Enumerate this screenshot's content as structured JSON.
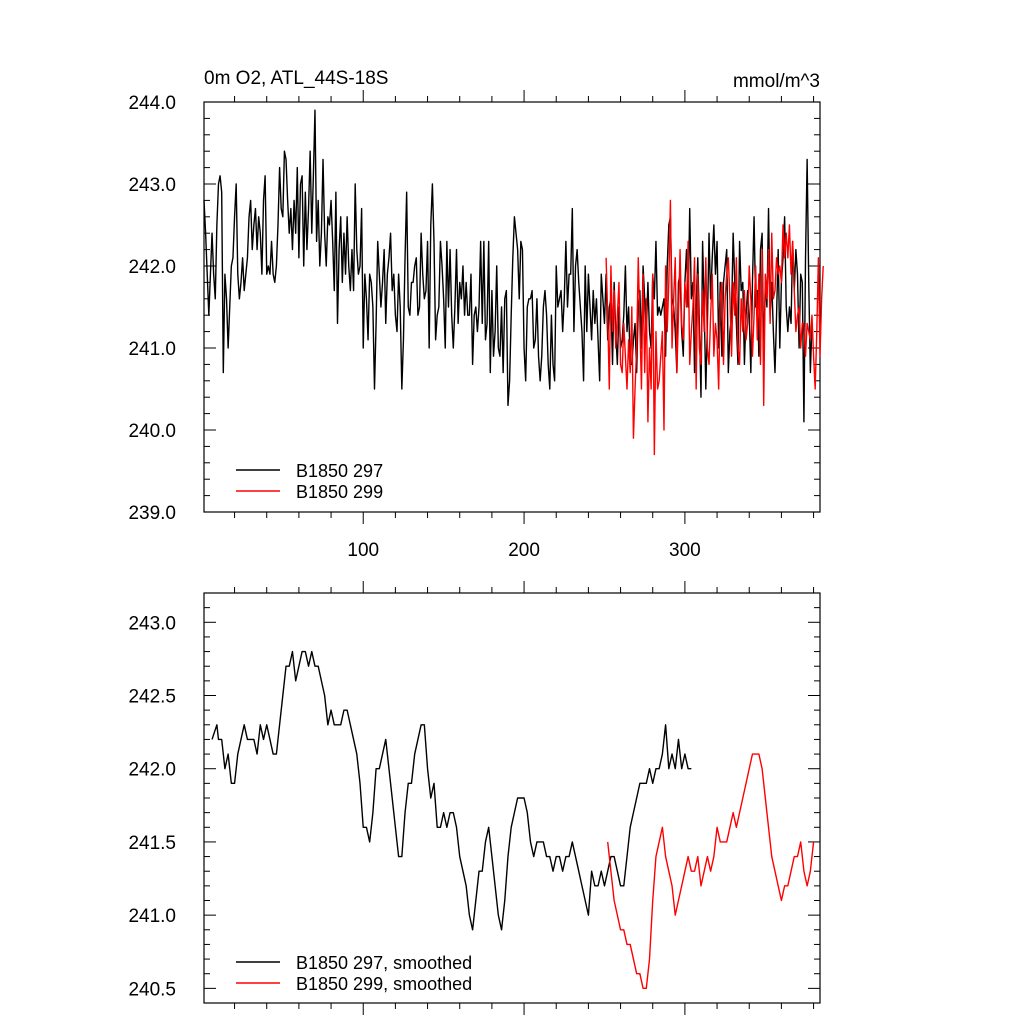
{
  "chart_data": [
    {
      "type": "line",
      "title": "0m O2, ATL_44S-18S",
      "units": "mmol/m^3",
      "xlim": [
        1,
        384
      ],
      "ylim": [
        239.0,
        244.0
      ],
      "x_ticks": [
        100,
        200,
        300
      ],
      "x_tick_labels": [
        "100",
        "200",
        "300"
      ],
      "y_ticks": [
        239.0,
        240.0,
        241.0,
        242.0,
        243.0,
        244.0
      ],
      "y_tick_labels": [
        "239.0",
        "240.0",
        "241.0",
        "242.0",
        "243.0",
        "244.0"
      ],
      "legend_placement": "bottom-left",
      "series": [
        {
          "name": "B1850 297",
          "color": "#000000",
          "x_start": 1,
          "values": [
            242.8,
            242.4,
            241.9,
            241.4,
            241.9,
            242.4,
            241.9,
            241.6,
            242.5,
            243.0,
            243.1,
            242.9,
            240.7,
            241.9,
            241.6,
            241.0,
            241.5,
            242.0,
            242.1,
            242.6,
            243.0,
            241.9,
            241.6,
            241.8,
            242.1,
            241.7,
            241.9,
            242.1,
            242.6,
            242.8,
            242.2,
            242.5,
            242.7,
            242.2,
            242.6,
            242.4,
            241.9,
            242.8,
            243.1,
            241.9,
            242.0,
            241.9,
            242.3,
            241.9,
            241.8,
            242.0,
            242.5,
            243.2,
            242.7,
            242.6,
            243.4,
            243.3,
            242.8,
            242.4,
            242.7,
            242.2,
            242.8,
            242.4,
            243.2,
            242.1,
            243.0,
            243.1,
            242.0,
            242.9,
            242.2,
            242.7,
            243.4,
            242.4,
            243.1,
            243.9,
            242.3,
            242.8,
            242.0,
            242.4,
            243.3,
            242.4,
            242.0,
            242.6,
            242.5,
            242.8,
            242.3,
            241.7,
            242.9,
            241.3,
            242.2,
            242.6,
            241.8,
            242.4,
            241.9,
            242.6,
            242.0,
            241.7,
            242.2,
            241.7,
            243.0,
            242.2,
            241.9,
            242.0,
            242.7,
            241.0,
            241.9,
            241.6,
            241.1,
            241.9,
            241.8,
            241.5,
            240.5,
            241.3,
            242.3,
            241.9,
            241.5,
            241.8,
            242.2,
            241.3,
            241.9,
            242.1,
            242.4,
            241.7,
            241.9,
            241.4,
            241.2,
            241.9,
            241.5,
            240.5,
            241.1,
            242.1,
            242.9,
            241.5,
            241.4,
            241.8,
            241.8,
            242.0,
            242.1,
            241.4,
            241.5,
            242.4,
            241.9,
            241.6,
            241.7,
            242.3,
            241.0,
            242.5,
            243.0,
            242.3,
            241.1,
            241.4,
            241.5,
            242.3,
            242.0,
            241.6,
            241.0,
            242.3,
            241.5,
            242.2,
            241.4,
            241.0,
            241.5,
            242.2,
            241.3,
            241.8,
            241.6,
            242.0,
            241.4,
            241.8,
            241.4,
            241.4,
            241.9,
            240.8,
            241.4,
            241.5,
            241.2,
            241.5,
            242.3,
            241.3,
            242.3,
            241.1,
            241.3,
            242.3,
            240.7,
            241.7,
            240.9,
            241.2,
            242.0,
            241.0,
            240.9,
            241.5,
            240.7,
            241.6,
            241.7,
            240.3,
            240.6,
            241.4,
            242.1,
            242.6,
            242.4,
            242.2,
            241.6,
            242.3,
            242.2,
            241.0,
            240.6,
            241.5,
            241.6,
            241.6,
            241.7,
            241.0,
            241.1,
            241.6,
            240.9,
            240.6,
            240.9,
            241.5,
            241.7,
            241.4,
            240.8,
            240.5,
            241.4,
            240.8,
            240.6,
            242.0,
            241.5,
            241.6,
            241.7,
            241.2,
            241.6,
            242.3,
            241.5,
            241.9,
            241.9,
            242.7,
            241.2,
            242.0,
            242.2,
            241.8,
            241.5,
            241.2,
            240.6,
            242.0,
            241.2,
            241.9,
            241.5,
            241.1,
            241.7,
            241.3,
            241.6,
            241.1,
            240.6,
            241.9,
            241.6,
            241.3,
            241.9,
            241.1,
            241.5,
            241.6,
            240.8,
            241.8,
            241.2,
            240.8,
            241.5,
            241.0,
            241.1,
            241.4,
            242.0,
            241.2,
            241.5,
            240.8,
            240.8,
            241.1,
            241.3,
            240.7,
            241.5,
            241.7,
            241.0,
            242.0,
            241.6,
            241.2,
            241.8,
            241.2,
            241.0,
            241.9,
            241.6,
            242.3,
            241.4,
            241.5,
            241.4,
            241.5,
            241.6,
            240.9,
            242.0,
            242.5,
            242.6,
            241.6,
            241.5,
            241.2,
            240.7,
            241.8,
            241.9,
            241.2,
            240.9,
            241.8,
            242.2,
            241.5,
            242.7,
            241.6,
            241.8,
            240.7,
            241.5,
            242.1,
            241.3,
            240.4,
            242.3,
            241.5,
            240.5,
            241.3,
            242.4,
            241.6,
            242.1,
            242.5,
            241.9,
            242.3,
            241.0,
            241.8,
            240.9,
            241.8,
            242.0,
            242.2,
            240.7,
            241.2,
            241.4,
            242.4,
            241.8,
            241.3,
            240.8,
            242.3,
            241.7,
            241.8,
            240.8,
            241.4,
            241.7,
            241.4,
            240.7,
            241.8,
            242.6,
            241.5,
            241.7,
            240.9,
            242.2,
            242.4,
            240.9,
            241.8,
            241.5,
            242.7,
            241.4,
            241.8,
            241.2,
            240.7,
            241.4,
            242.2,
            241.0,
            241.8,
            242.1,
            242.6,
            241.5,
            241.2,
            241.5,
            241.3,
            242.3,
            241.7,
            242.2,
            241.9,
            241.0,
            241.9,
            241.8,
            240.1,
            242.1,
            243.3,
            241.8,
            240.7,
            241.3
          ]
        },
        {
          "name": "B1850 299",
          "color": "#ff0000",
          "x_start": 251,
          "values": [
            242.1,
            241.4,
            240.5,
            242.0,
            241.2,
            241.7,
            241.0,
            241.4,
            241.8,
            240.8,
            240.7,
            241.3,
            240.9,
            240.5,
            241.1,
            240.7,
            241.5,
            239.9,
            240.5,
            241.0,
            242.1,
            241.3,
            240.5,
            241.9,
            240.7,
            241.6,
            240.1,
            241.0,
            240.5,
            241.9,
            239.7,
            241.2,
            240.5,
            240.6,
            240.9,
            241.2,
            240.0,
            242.0,
            241.2,
            241.8,
            242.8,
            241.0,
            241.6,
            242.1,
            240.7,
            241.4,
            242.2,
            241.3,
            241.1,
            241.8,
            241.5,
            242.3,
            240.8,
            241.2,
            241.5,
            242.1,
            240.5,
            241.9,
            241.0,
            240.8,
            241.7,
            241.2,
            242.1,
            241.0,
            240.8,
            241.4,
            241.9,
            240.9,
            241.3,
            241.1,
            240.5,
            241.6,
            241.8,
            240.8,
            241.6,
            241.9,
            242.1,
            241.6,
            240.9,
            241.8,
            241.4,
            242.1,
            241.0,
            240.8,
            241.6,
            241.2,
            241.7,
            241.1,
            241.3,
            242.0,
            241.6,
            240.9,
            241.4,
            242.0,
            241.1,
            241.9,
            240.8,
            242.2,
            240.3,
            241.9,
            241.6,
            242.2,
            241.3,
            242.4,
            241.6,
            241.7,
            242.1,
            241.9,
            242.0,
            241.8,
            242.5,
            242.1,
            242.4,
            242.1,
            242.5,
            241.9,
            242.3,
            241.7,
            241.2,
            241.4,
            241.5,
            241.0,
            241.3,
            241.3,
            240.9,
            241.3,
            241.2,
            241.1,
            241.4,
            240.9,
            240.5,
            241.2,
            242.1,
            240.9,
            241.6,
            242.0
          ]
        }
      ]
    },
    {
      "type": "line",
      "xlim": [
        1,
        384
      ],
      "ylim": [
        240.4,
        243.2
      ],
      "x_ticks": [
        100,
        200,
        300
      ],
      "y_ticks": [
        240.5,
        241.0,
        241.5,
        242.0,
        242.5,
        243.0
      ],
      "y_tick_labels": [
        "240.5",
        "241.0",
        "241.5",
        "242.0",
        "242.5",
        "243.0"
      ],
      "legend_placement": "bottom-left",
      "series": [
        {
          "name": "B1850 297, smoothed",
          "color": "#000000",
          "x": [
            6,
            9,
            10,
            12,
            14,
            16,
            18,
            20,
            22,
            24,
            26,
            28,
            30,
            32,
            34,
            36,
            38,
            40,
            42,
            44,
            46,
            48,
            50,
            52,
            54,
            56,
            58,
            60,
            62,
            64,
            66,
            68,
            70,
            72,
            74,
            76,
            78,
            80,
            82,
            84,
            86,
            88,
            90,
            92,
            94,
            96,
            98,
            100,
            102,
            104,
            106,
            108,
            110,
            112,
            114,
            116,
            118,
            120,
            122,
            124,
            126,
            128,
            130,
            132,
            134,
            136,
            138,
            140,
            142,
            144,
            146,
            148,
            150,
            152,
            154,
            156,
            158,
            160,
            162,
            164,
            166,
            168,
            170,
            172,
            174,
            176,
            178,
            180,
            182,
            184,
            186,
            188,
            190,
            192,
            194,
            196,
            198,
            200,
            202,
            204,
            206,
            208,
            210,
            212,
            214,
            216,
            218,
            220,
            222,
            224,
            226,
            228,
            230,
            232,
            234,
            236,
            238,
            240,
            242,
            244,
            246,
            248,
            250,
            252,
            254,
            256,
            258,
            260,
            262,
            264,
            266,
            268,
            270,
            272,
            274,
            276,
            278,
            280,
            282,
            284,
            286,
            288,
            290,
            292,
            294,
            296,
            298,
            300,
            302,
            304
          ],
          "values": [
            242.2,
            242.3,
            242.2,
            242.2,
            242.0,
            242.1,
            241.9,
            241.9,
            242.1,
            242.2,
            242.3,
            242.2,
            242.2,
            242.2,
            242.1,
            242.3,
            242.2,
            242.3,
            242.2,
            242.1,
            242.1,
            242.3,
            242.5,
            242.7,
            242.7,
            242.8,
            242.6,
            242.7,
            242.8,
            242.8,
            242.7,
            242.8,
            242.7,
            242.7,
            242.6,
            242.5,
            242.3,
            242.4,
            242.3,
            242.3,
            242.3,
            242.4,
            242.4,
            242.3,
            242.2,
            242.1,
            241.9,
            241.6,
            241.6,
            241.5,
            241.7,
            242.0,
            242.0,
            242.1,
            242.2,
            242.0,
            241.8,
            241.6,
            241.4,
            241.4,
            241.7,
            241.9,
            241.9,
            242.1,
            242.2,
            242.3,
            242.3,
            242.0,
            241.8,
            241.9,
            241.6,
            241.6,
            241.7,
            241.6,
            241.7,
            241.7,
            241.6,
            241.4,
            241.3,
            241.2,
            241.0,
            240.9,
            241.1,
            241.3,
            241.3,
            241.5,
            241.6,
            241.4,
            241.2,
            241.0,
            240.9,
            241.1,
            241.4,
            241.6,
            241.7,
            241.8,
            241.8,
            241.8,
            241.7,
            241.5,
            241.4,
            241.5,
            241.5,
            241.5,
            241.4,
            241.4,
            241.3,
            241.4,
            241.4,
            241.3,
            241.4,
            241.4,
            241.5,
            241.4,
            241.3,
            241.2,
            241.1,
            241.0,
            241.3,
            241.2,
            241.2,
            241.3,
            241.2,
            241.3,
            241.4,
            241.4,
            241.3,
            241.2,
            241.2,
            241.4,
            241.6,
            241.7,
            241.8,
            241.9,
            241.9,
            241.9,
            242.0,
            241.9,
            242.0,
            242.0,
            242.1,
            242.3,
            242.0,
            242.1,
            242.0,
            242.2,
            242.0,
            242.1,
            242.0,
            242.0
          ]
        },
        {
          "name": "B1850 299, smoothed",
          "color": "#ff0000",
          "x": [
            252,
            254,
            256,
            258,
            260,
            262,
            264,
            266,
            268,
            270,
            272,
            274,
            276,
            278,
            280,
            282,
            284,
            286,
            288,
            290,
            292,
            294,
            296,
            298,
            300,
            302,
            304,
            306,
            308,
            310,
            312,
            314,
            316,
            318,
            320,
            322,
            324,
            326,
            328,
            330,
            332,
            334,
            336,
            338,
            340,
            342,
            344,
            346,
            348,
            350,
            352,
            354,
            356,
            358,
            360,
            362,
            364,
            366,
            368,
            370,
            372,
            374,
            376,
            378,
            380
          ],
          "values": [
            241.5,
            241.3,
            241.1,
            241.0,
            240.9,
            240.9,
            240.8,
            240.8,
            240.7,
            240.6,
            240.6,
            240.5,
            240.5,
            240.7,
            241.1,
            241.4,
            241.5,
            241.6,
            241.4,
            241.3,
            241.2,
            241.0,
            241.1,
            241.2,
            241.3,
            241.4,
            241.3,
            241.3,
            241.4,
            241.2,
            241.3,
            241.4,
            241.3,
            241.4,
            241.6,
            241.5,
            241.5,
            241.5,
            241.6,
            241.7,
            241.6,
            241.7,
            241.8,
            241.9,
            242.0,
            242.1,
            242.1,
            242.1,
            242.0,
            241.8,
            241.6,
            241.4,
            241.3,
            241.2,
            241.1,
            241.2,
            241.2,
            241.3,
            241.4,
            241.4,
            241.5,
            241.3,
            241.2,
            241.3,
            241.5
          ]
        }
      ]
    }
  ]
}
